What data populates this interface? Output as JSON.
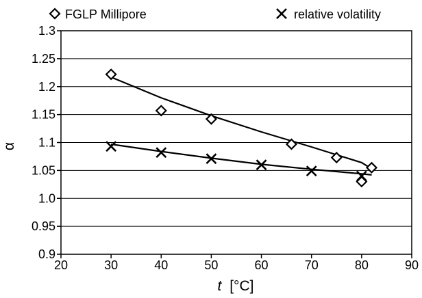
{
  "chart_data": {
    "type": "scatter",
    "xlabel_italic": "t",
    "xlabel_unit": "[°C]",
    "ylabel": "α",
    "xlim": [
      20,
      90
    ],
    "ylim": [
      0.9,
      1.3
    ],
    "x_ticks": [
      "20",
      "30",
      "40",
      "50",
      "60",
      "70",
      "80",
      "90"
    ],
    "y_ticks": [
      "0.9",
      "0.95",
      "1.0",
      "1.05",
      "1.1",
      "1.15",
      "1.2",
      "1.25",
      "1.3"
    ],
    "grid": "horizontal",
    "legend_position": "top",
    "series": [
      {
        "name": "FGLP Millipore",
        "marker": "diamond",
        "points": [
          [
            30,
            1.222
          ],
          [
            40,
            1.157
          ],
          [
            50,
            1.142
          ],
          [
            66,
            1.097
          ],
          [
            75,
            1.073
          ],
          [
            80,
            1.03
          ],
          [
            82,
            1.055
          ]
        ],
        "trend": [
          [
            30,
            1.217
          ],
          [
            40,
            1.18
          ],
          [
            50,
            1.148
          ],
          [
            60,
            1.119
          ],
          [
            70,
            1.092
          ],
          [
            80,
            1.064
          ],
          [
            82,
            1.053
          ]
        ]
      },
      {
        "name": "relative volatility",
        "marker": "x",
        "points": [
          [
            30,
            1.093
          ],
          [
            40,
            1.082
          ],
          [
            50,
            1.071
          ],
          [
            60,
            1.06
          ],
          [
            70,
            1.049
          ],
          [
            80,
            1.04
          ]
        ],
        "trend": [
          [
            30,
            1.097
          ],
          [
            40,
            1.084
          ],
          [
            50,
            1.072
          ],
          [
            60,
            1.061
          ],
          [
            70,
            1.052
          ],
          [
            80,
            1.044
          ],
          [
            82,
            1.042
          ]
        ]
      }
    ]
  }
}
